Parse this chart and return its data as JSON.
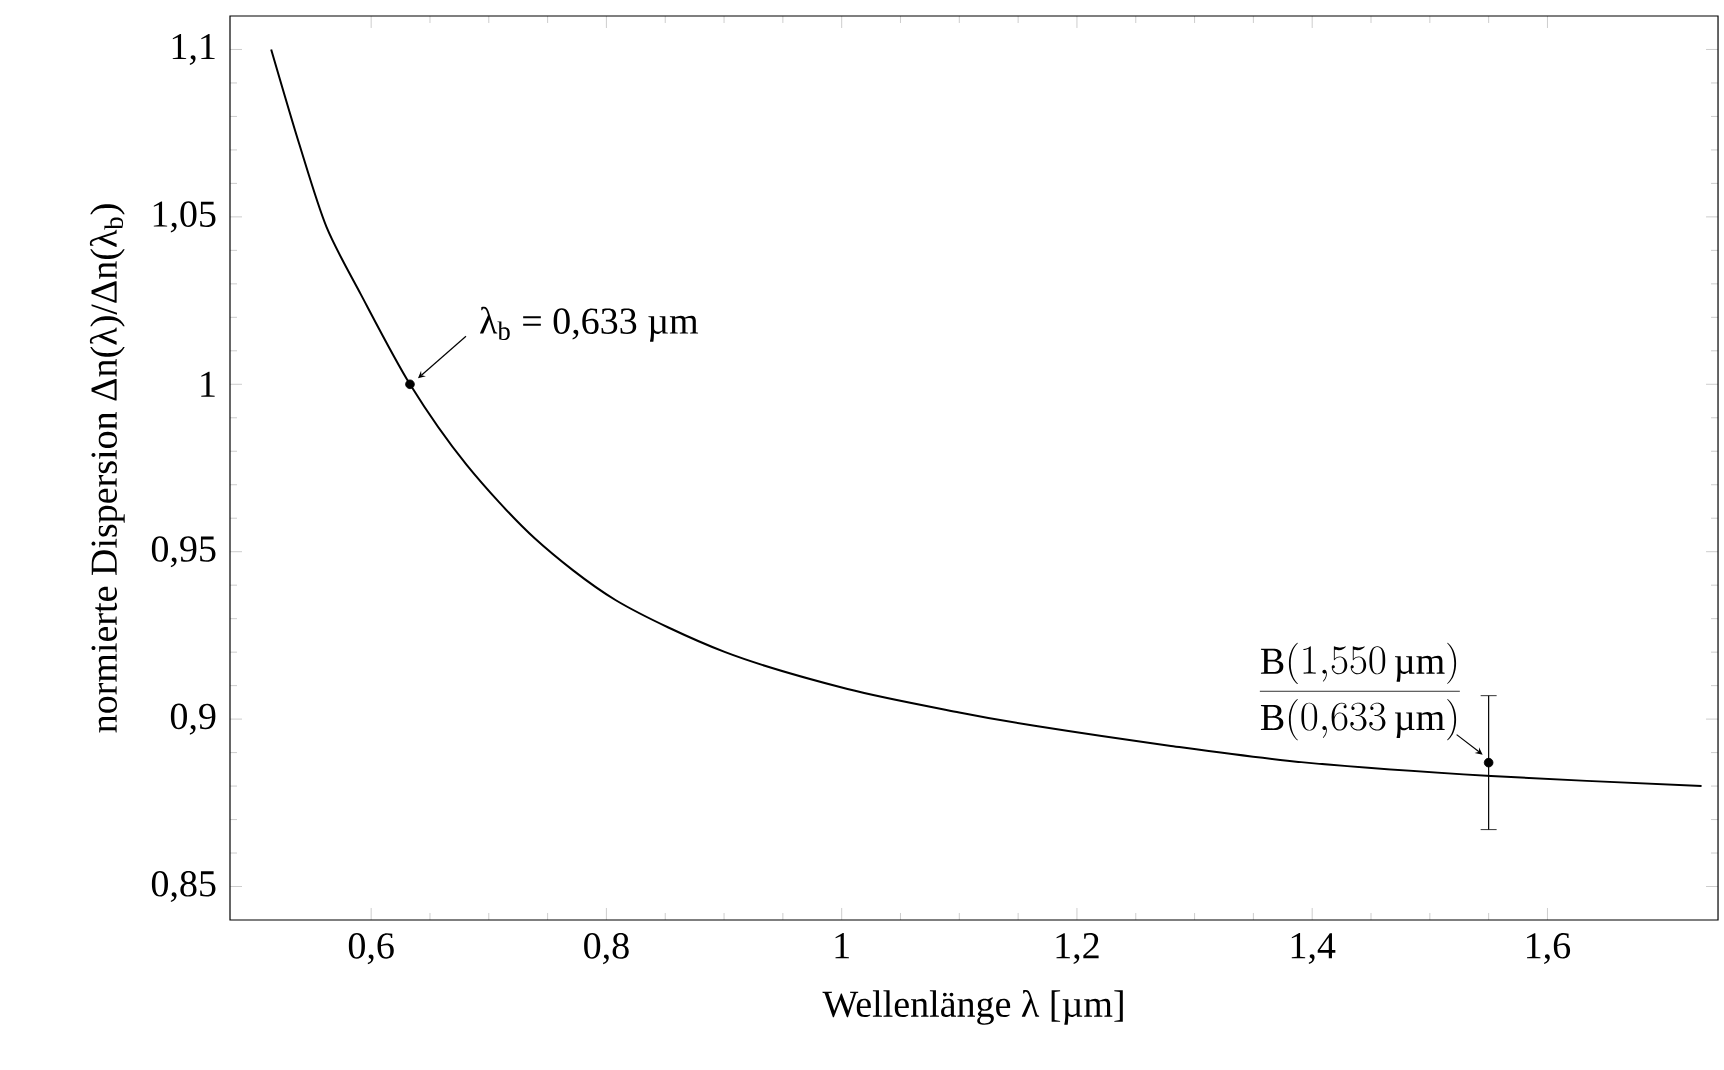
{
  "chart_data": {
    "type": "line",
    "xlabel": "Wellenlänge λ [µm]",
    "ylabel": "normierte Dispersion Δn(λ)/Δn(λ$_{b}$)",
    "xlim": [
      0.48,
      1.745
    ],
    "ylim": [
      0.84,
      1.11
    ],
    "xticks": [
      {
        "value": 0.6,
        "label": "0,6"
      },
      {
        "value": 0.8,
        "label": "0,8"
      },
      {
        "value": 1,
        "label": "1"
      },
      {
        "value": 1.2,
        "label": "1,2"
      },
      {
        "value": 1.4,
        "label": "1,4"
      },
      {
        "value": 1.6,
        "label": "1,6"
      }
    ],
    "yticks": [
      {
        "value": 0.85,
        "label": "0,85"
      },
      {
        "value": 0.9,
        "label": "0,9"
      },
      {
        "value": 0.95,
        "label": "0,95"
      },
      {
        "value": 1,
        "label": "1"
      },
      {
        "value": 1.05,
        "label": "1,05"
      },
      {
        "value": 1.1,
        "label": "1,1"
      }
    ],
    "grid": false,
    "series": [
      {
        "color": "#000000",
        "marker": "none",
        "line_style": "solid",
        "x": [
          0.515,
          0.539,
          0.562,
          0.591,
          0.633,
          0.681,
          0.739,
          0.808,
          0.901,
          1.005,
          1.1,
          1.164,
          1.28,
          1.395,
          1.552,
          1.731
        ],
        "values": [
          1.1,
          1.0716,
          1.047,
          1.027,
          1.0,
          0.976,
          0.954,
          0.9355,
          0.92,
          0.909,
          0.902,
          0.898,
          0.892,
          0.887,
          0.883,
          0.88
        ]
      },
      {
        "type": "scatter",
        "color": "#000000",
        "marker": "circle",
        "x": [
          0.633,
          1.55
        ],
        "values": [
          1.0,
          0.887
        ],
        "errors": [
          null,
          0.02
        ]
      }
    ],
    "annotations": [
      {
        "text": "λ$_{b}$ = 0,633 µm",
        "x": 0.633,
        "y": 1.0
      },
      {
        "text": "\\frac{\\mathrm{B}(1{,}550\\,\\mbox{µm})}{\\mathrm{B}(0{,}633\\,\\mbox{µm})}",
        "x": 1.55,
        "y": 0.887
      }
    ]
  }
}
